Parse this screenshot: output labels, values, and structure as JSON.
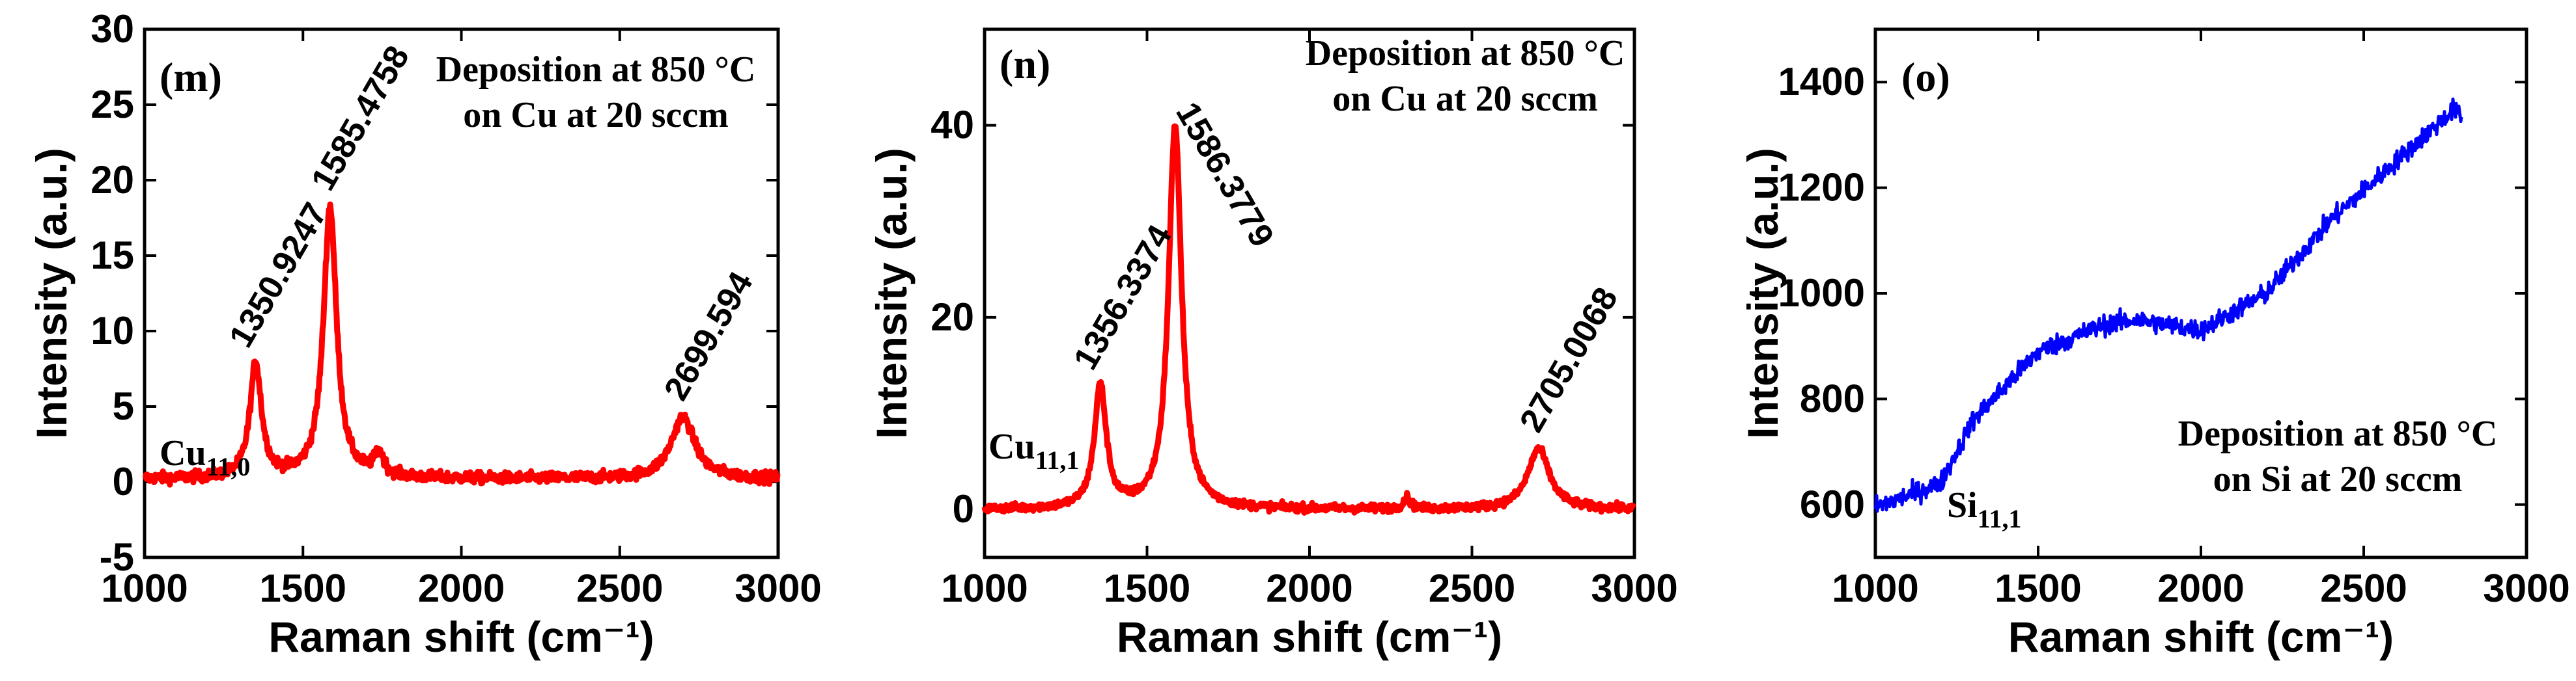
{
  "chart_data": [
    {
      "type": "line",
      "panel": "(m)",
      "annotation": [
        "Deposition at 850 °C",
        "on Cu at 20 sccm"
      ],
      "xlabel": "Raman shift (cm⁻¹)",
      "ylabel": "Intensity (a.u.)",
      "xlim": [
        1000,
        3000
      ],
      "ylim": [
        -5,
        30
      ],
      "xticks": [
        1000,
        1500,
        2000,
        2500,
        3000
      ],
      "yticks": [
        -5,
        0,
        5,
        10,
        15,
        20,
        25,
        30
      ],
      "line_color": "#ff0000",
      "baseline": 0.2,
      "noise": 0.35,
      "drift": 0,
      "peaks": [
        {
          "x": 1350.9247,
          "height": 7.6,
          "width": 22,
          "label": "1350.9247"
        },
        {
          "x": 1585.4758,
          "height": 18.0,
          "width": 25,
          "label": "1585.4758"
        },
        {
          "x": 1740,
          "height": 1.5,
          "width": 18,
          "label": ""
        },
        {
          "x": 2699.594,
          "height": 4.1,
          "width": 45,
          "label": "2699.594"
        }
      ],
      "marker_label": {
        "base": "Cu",
        "sub": "11,0"
      }
    },
    {
      "type": "line",
      "panel": "(n)",
      "annotation": [
        "Deposition at 850 °C",
        "on Cu at 20 sccm"
      ],
      "xlabel": "Raman shift (cm⁻¹)",
      "ylabel": "Intensity (a.u.)",
      "xlim": [
        1000,
        3000
      ],
      "ylim": [
        -5,
        50
      ],
      "xticks": [
        1000,
        1500,
        2000,
        2500,
        3000
      ],
      "yticks": [
        0,
        20,
        40
      ],
      "line_color": "#ff0000",
      "baseline": 0.0,
      "noise": 0.4,
      "drift": 0,
      "peaks": [
        {
          "x": 1356.3374,
          "height": 12.8,
          "width": 22,
          "label": "1356.3374"
        },
        {
          "x": 1586.3779,
          "height": 40.0,
          "width": 24,
          "label": "1586.3779"
        },
        {
          "x": 2300,
          "height": 1.2,
          "width": 12,
          "label": ""
        },
        {
          "x": 2705.0068,
          "height": 6.3,
          "width": 40,
          "label": "2705.0068"
        }
      ],
      "marker_label": {
        "base": "Cu",
        "sub": "11,1"
      }
    },
    {
      "type": "line",
      "panel": "(o)",
      "annotation": [
        "Deposition at 850 °C",
        "on Si at 20 sccm"
      ],
      "xlabel": "Raman shift (cm⁻¹)",
      "ylabel": "Intensity (a.u.)",
      "xlim": [
        1000,
        3000
      ],
      "ylim": [
        500,
        1500
      ],
      "xticks": [
        1000,
        1500,
        2000,
        2500,
        3000
      ],
      "yticks": [
        600,
        800,
        1000,
        1200,
        1400
      ],
      "line_color": "#0000ff",
      "xmax_data": 2800,
      "noise": 18,
      "trend": [
        [
          1000,
          595
        ],
        [
          1200,
          640
        ],
        [
          1300,
          760
        ],
        [
          1500,
          890
        ],
        [
          1700,
          940
        ],
        [
          1800,
          950
        ],
        [
          2000,
          930
        ],
        [
          2200,
          1000
        ],
        [
          2400,
          1140
        ],
        [
          2600,
          1250
        ],
        [
          2780,
          1350
        ],
        [
          2800,
          1330
        ]
      ],
      "peaks": [],
      "marker_label": {
        "base": "Si",
        "sub": "11,1"
      }
    }
  ]
}
